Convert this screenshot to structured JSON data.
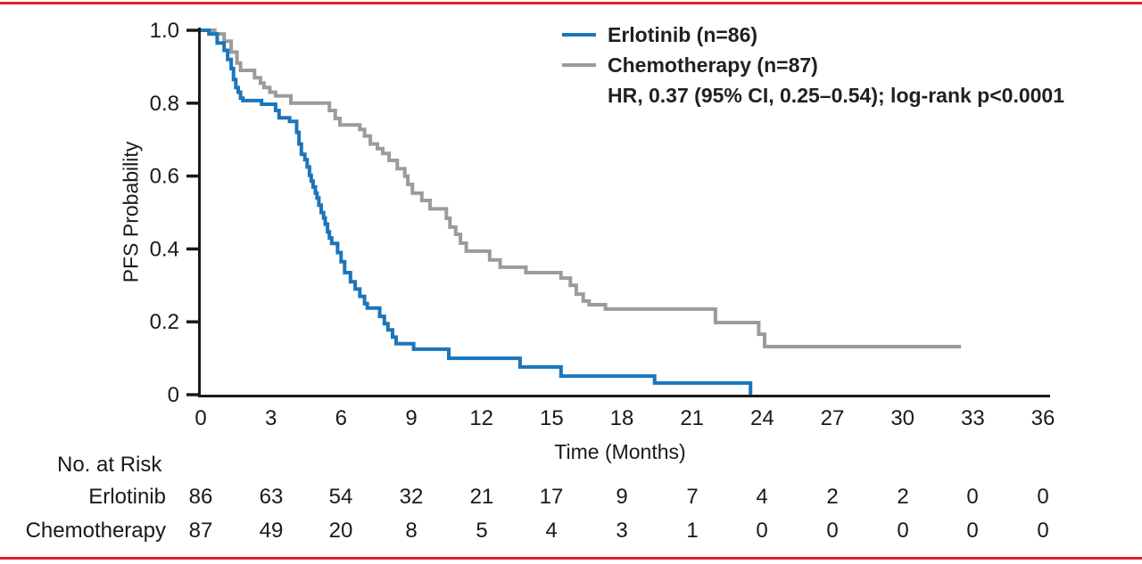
{
  "colors": {
    "frame_border": "#e02128",
    "axis": "#1a1a1a",
    "erlotinib": "#1b75bb",
    "chemotherapy": "#9b9b9b"
  },
  "chart_data": {
    "type": "line",
    "subtype": "kaplan-meier-step",
    "title": "",
    "xlabel": "Time (Months)",
    "ylabel": "PFS Probability",
    "xlim": [
      0,
      36
    ],
    "ylim": [
      0,
      1.0
    ],
    "grid": false,
    "legend_position": "top-right-inside",
    "x_ticks": [
      0,
      3,
      6,
      9,
      12,
      15,
      18,
      21,
      24,
      27,
      30,
      33,
      36
    ],
    "y_ticks": [
      [
        1.0,
        "1.0"
      ],
      [
        0.8,
        "0.8"
      ],
      [
        0.6,
        "0.6"
      ],
      [
        0.4,
        "0.4"
      ],
      [
        0.2,
        "0.2"
      ],
      [
        0,
        "0"
      ]
    ],
    "annotation": "HR, 0.37 (95% CI, 0.25–0.54); log-rank p<0.0001",
    "series": [
      {
        "name": "Erlotinib (n=86)",
        "color": "#1b75bb",
        "steps": [
          [
            0,
            1.0
          ],
          [
            0.35,
            0.99
          ],
          [
            0.7,
            0.965
          ],
          [
            1.0,
            0.945
          ],
          [
            1.15,
            0.92
          ],
          [
            1.3,
            0.895
          ],
          [
            1.4,
            0.865
          ],
          [
            1.5,
            0.843
          ],
          [
            1.6,
            0.83
          ],
          [
            1.7,
            0.814
          ],
          [
            1.8,
            0.807
          ],
          [
            2.6,
            0.797
          ],
          [
            3.2,
            0.78
          ],
          [
            3.35,
            0.76
          ],
          [
            3.8,
            0.75
          ],
          [
            4.1,
            0.72
          ],
          [
            4.2,
            0.688
          ],
          [
            4.3,
            0.66
          ],
          [
            4.45,
            0.645
          ],
          [
            4.55,
            0.625
          ],
          [
            4.65,
            0.602
          ],
          [
            4.72,
            0.586
          ],
          [
            4.8,
            0.57
          ],
          [
            4.9,
            0.553
          ],
          [
            4.97,
            0.54
          ],
          [
            5.05,
            0.52
          ],
          [
            5.15,
            0.5
          ],
          [
            5.25,
            0.485
          ],
          [
            5.32,
            0.468
          ],
          [
            5.42,
            0.447
          ],
          [
            5.5,
            0.43
          ],
          [
            5.6,
            0.415
          ],
          [
            5.85,
            0.39
          ],
          [
            6.0,
            0.365
          ],
          [
            6.15,
            0.335
          ],
          [
            6.4,
            0.31
          ],
          [
            6.6,
            0.29
          ],
          [
            6.8,
            0.27
          ],
          [
            7.0,
            0.25
          ],
          [
            7.12,
            0.238
          ],
          [
            7.65,
            0.215
          ],
          [
            7.85,
            0.195
          ],
          [
            8.0,
            0.178
          ],
          [
            8.2,
            0.158
          ],
          [
            8.35,
            0.14
          ],
          [
            9.1,
            0.125
          ],
          [
            10.6,
            0.1
          ],
          [
            13.65,
            0.076
          ],
          [
            15.4,
            0.051
          ],
          [
            19.4,
            0.032
          ],
          [
            23.5,
            0
          ]
        ]
      },
      {
        "name": "Chemotherapy (n=87)",
        "color": "#9b9b9b",
        "end_time": 32.5,
        "steps": [
          [
            0,
            1.0
          ],
          [
            0.6,
            0.99
          ],
          [
            1.0,
            0.97
          ],
          [
            1.3,
            0.94
          ],
          [
            1.55,
            0.91
          ],
          [
            1.7,
            0.89
          ],
          [
            2.3,
            0.87
          ],
          [
            2.55,
            0.855
          ],
          [
            2.7,
            0.843
          ],
          [
            2.95,
            0.83
          ],
          [
            3.2,
            0.82
          ],
          [
            3.85,
            0.8
          ],
          [
            5.5,
            0.78
          ],
          [
            5.75,
            0.758
          ],
          [
            5.95,
            0.74
          ],
          [
            6.8,
            0.728
          ],
          [
            7.0,
            0.71
          ],
          [
            7.25,
            0.688
          ],
          [
            7.55,
            0.675
          ],
          [
            7.78,
            0.662
          ],
          [
            8.05,
            0.643
          ],
          [
            8.4,
            0.62
          ],
          [
            8.72,
            0.6
          ],
          [
            8.85,
            0.577
          ],
          [
            9.05,
            0.553
          ],
          [
            9.45,
            0.533
          ],
          [
            9.8,
            0.51
          ],
          [
            10.5,
            0.484
          ],
          [
            10.65,
            0.46
          ],
          [
            10.9,
            0.44
          ],
          [
            11.1,
            0.416
          ],
          [
            11.35,
            0.394
          ],
          [
            12.35,
            0.37
          ],
          [
            12.8,
            0.35
          ],
          [
            13.9,
            0.335
          ],
          [
            15.4,
            0.32
          ],
          [
            15.8,
            0.3
          ],
          [
            16.05,
            0.276
          ],
          [
            16.35,
            0.257
          ],
          [
            16.6,
            0.247
          ],
          [
            17.3,
            0.235
          ],
          [
            22.0,
            0.198
          ],
          [
            23.85,
            0.166
          ],
          [
            24.1,
            0.132
          ]
        ]
      }
    ],
    "risk_table": {
      "title": "No. at Risk",
      "times": [
        0,
        3,
        6,
        9,
        12,
        15,
        18,
        21,
        24,
        27,
        30,
        33,
        36
      ],
      "rows": [
        {
          "label": "Erlotinib",
          "values": [
            "86",
            "63",
            "54",
            "32",
            "21",
            "17",
            "9",
            "7",
            "4",
            "2",
            "2",
            "0",
            "0"
          ]
        },
        {
          "label": "Chemotherapy",
          "values": [
            "87",
            "49",
            "20",
            "8",
            "5",
            "4",
            "3",
            "1",
            "0",
            "0",
            "0",
            "0",
            "0"
          ]
        }
      ]
    }
  }
}
